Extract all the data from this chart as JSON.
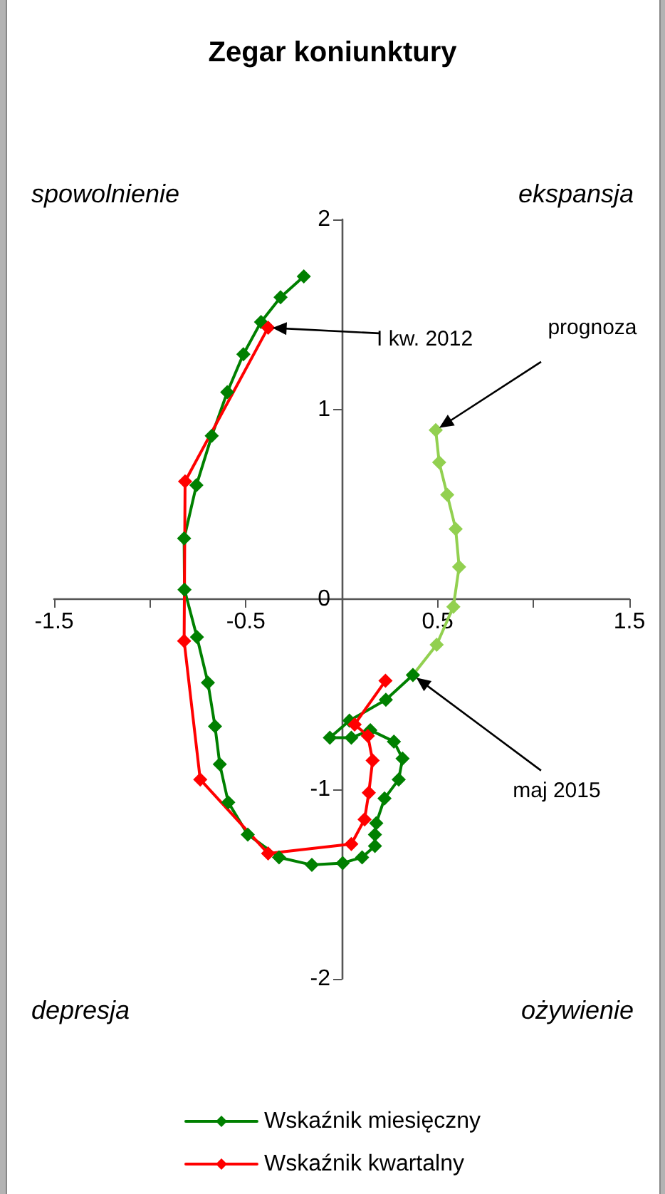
{
  "chart_data": {
    "type": "line",
    "title": "Zegar koniunktury",
    "annotations": [
      "spowolnienie",
      "ekspansja",
      "depresja",
      "ożywienie",
      {
        "text": "I kw. 2012",
        "x": -0.384,
        "y": 1.43
      },
      {
        "text": "prognoza",
        "x": 0.49,
        "y": 0.89
      },
      {
        "text": "maj 2015",
        "x": 0.371,
        "y": -0.4
      }
    ],
    "series": [
      {
        "name": "Wskaźnik miesięczny",
        "color": "#008000",
        "x": [
          -0.198,
          -0.319,
          -0.421,
          -0.513,
          -0.597,
          -0.678,
          -0.758,
          -0.822,
          -0.82,
          -0.755,
          -0.698,
          -0.661,
          -0.636,
          -0.592,
          -0.49,
          -0.327,
          -0.156,
          0.005,
          0.106,
          0.173,
          0.173,
          0.18,
          0.223,
          0.297,
          0.317,
          0.272,
          0.149,
          0.05,
          -0.062,
          0.04,
          0.23,
          0.371
        ],
        "values": [
          1.7,
          1.59,
          1.46,
          1.29,
          1.09,
          0.86,
          0.6,
          0.32,
          0.05,
          -0.2,
          -0.44,
          -0.67,
          -0.87,
          -1.07,
          -1.24,
          -1.36,
          -1.4,
          -1.39,
          -1.36,
          -1.3,
          -1.24,
          -1.18,
          -1.05,
          -0.95,
          -0.84,
          -0.75,
          -0.69,
          -0.73,
          -0.73,
          -0.64,
          -0.53,
          -0.4
        ]
      },
      {
        "color": "#92d050",
        "x": [
          0.371,
          0.495,
          0.582,
          0.612,
          0.594,
          0.55,
          0.508,
          0.49
        ],
        "values": [
          -0.4,
          -0.24,
          -0.04,
          0.17,
          0.37,
          0.55,
          0.72,
          0.89
        ]
      },
      {
        "name": "Wskaźnik kwartalny",
        "color": "#ff0000",
        "x": [
          -0.384,
          -0.817,
          -0.822,
          -0.738,
          -0.384,
          0.05,
          0.119,
          0.141,
          0.161,
          0.136,
          0.067,
          0.228
        ],
        "values": [
          1.43,
          0.62,
          -0.22,
          -0.95,
          -1.34,
          -1.29,
          -1.16,
          -1.02,
          -0.85,
          -0.72,
          -0.66,
          -0.43
        ]
      }
    ],
    "xlim": [
      -1.5,
      1.5
    ],
    "xticks": [
      -1.5,
      {
        "value": -1,
        "label": null
      },
      -0.5,
      {
        "value": 0,
        "label": null
      },
      0.5,
      {
        "value": 1,
        "label": null
      },
      1.5
    ],
    "ylim": [
      -2,
      2
    ],
    "yticks": [
      -2,
      -1,
      0,
      1,
      2
    ],
    "marker": "diamond",
    "line_style": "solid",
    "legend": "bottom"
  }
}
